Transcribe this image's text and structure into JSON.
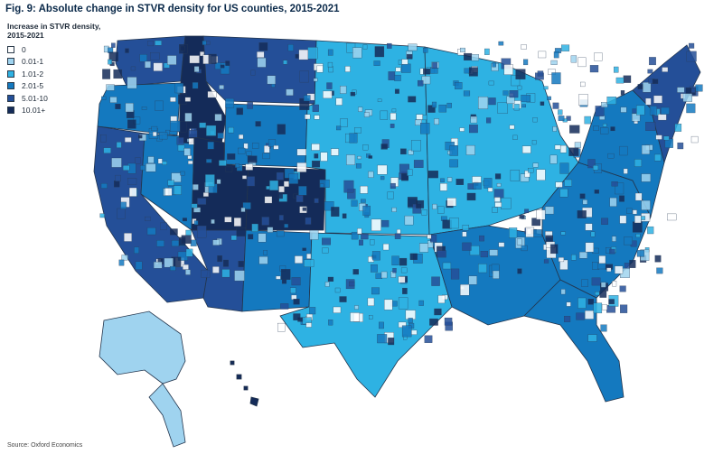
{
  "figure": {
    "title": "Fig. 9: Absolute change in STVR density for US counties, 2015-2021",
    "source": "Source: Oxford Economics"
  },
  "legend": {
    "title": "Increase in STVR density,\n2015-2021",
    "items": [
      {
        "label": "0",
        "color": "#ffffff"
      },
      {
        "label": "0.01-1",
        "color": "#9fd3ef"
      },
      {
        "label": "1.01-2",
        "color": "#2eb2e3"
      },
      {
        "label": "2.01-5",
        "color": "#1479bf"
      },
      {
        "label": "5.01-10",
        "color": "#244f98"
      },
      {
        "label": "10.01+",
        "color": "#142b59"
      }
    ]
  },
  "regions": [
    {
      "name": "Washington",
      "class": "5.01-10"
    },
    {
      "name": "Oregon",
      "class": "2.01-5"
    },
    {
      "name": "California",
      "class": "5.01-10"
    },
    {
      "name": "Nevada",
      "class": "2.01-5"
    },
    {
      "name": "Idaho",
      "class": "10.01+"
    },
    {
      "name": "Montana",
      "class": "5.01-10"
    },
    {
      "name": "Wyoming",
      "class": "2.01-5"
    },
    {
      "name": "Utah",
      "class": "10.01+"
    },
    {
      "name": "Arizona",
      "class": "5.01-10"
    },
    {
      "name": "Colorado",
      "class": "10.01+"
    },
    {
      "name": "New Mexico",
      "class": "2.01-5"
    },
    {
      "name": "Great Plains",
      "class": "1.01-2"
    },
    {
      "name": "Texas",
      "class": "1.01-2"
    },
    {
      "name": "Midwest",
      "class": "1.01-2"
    },
    {
      "name": "Gulf South",
      "class": "2.01-5"
    },
    {
      "name": "Southeast",
      "class": "2.01-5"
    },
    {
      "name": "Florida",
      "class": "2.01-5"
    },
    {
      "name": "Mid-Atlantic",
      "class": "2.01-5"
    },
    {
      "name": "New England",
      "class": "5.01-10"
    },
    {
      "name": "Alaska",
      "class": "0.01-1"
    },
    {
      "name": "Hawaii",
      "class": "10.01+"
    }
  ]
}
